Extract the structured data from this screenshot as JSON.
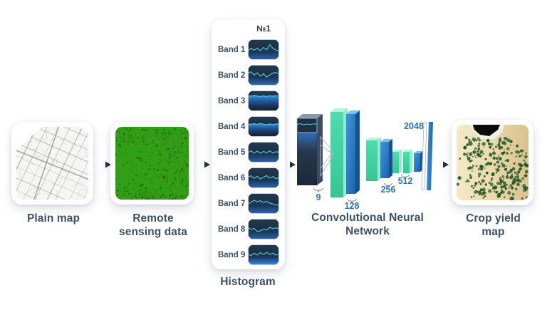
{
  "stages": {
    "plain_map": {
      "caption": "Plain map"
    },
    "remote_sensing": {
      "caption": "Remote sensing data"
    },
    "histogram": {
      "number": "№1",
      "caption": "Histogram",
      "bands": [
        {
          "label": "Band 1",
          "style": "bottom",
          "bright": 0.55,
          "wave": [
            0.3,
            0.52,
            0.38,
            0.5,
            0.34,
            0.58,
            0.4,
            0.78,
            0.52,
            0.38,
            0.33
          ]
        },
        {
          "label": "Band 2",
          "style": "bottom",
          "bright": 0.65,
          "wave": [
            0.55,
            0.68,
            0.44,
            0.6,
            0.36,
            0.52,
            0.28,
            0.44,
            0.58,
            0.62,
            0.48
          ]
        },
        {
          "label": "Band 3",
          "style": "top",
          "bright": 0.3,
          "wave": [
            0.8,
            0.77,
            0.82,
            0.78,
            0.74,
            0.79,
            0.75,
            0.8,
            0.77,
            0.8,
            0.78
          ]
        },
        {
          "label": "Band 4",
          "style": "top",
          "bright": 0.3,
          "wave": [
            0.6,
            0.58,
            0.63,
            0.57,
            0.65,
            0.59,
            0.55,
            0.61,
            0.57,
            0.62,
            0.59
          ]
        },
        {
          "label": "Band 5",
          "style": "bottom",
          "bright": 0.55,
          "wave": [
            0.38,
            0.52,
            0.36,
            0.5,
            0.34,
            0.48,
            0.38,
            0.52,
            0.36,
            0.46,
            0.4
          ]
        },
        {
          "label": "Band 6",
          "style": "bottom",
          "bright": 0.6,
          "wave": [
            0.44,
            0.58,
            0.38,
            0.54,
            0.34,
            0.48,
            0.58,
            0.4,
            0.52,
            0.36,
            0.44
          ]
        },
        {
          "label": "Band 7",
          "style": "bottom",
          "bright": 0.6,
          "wave": [
            0.38,
            0.52,
            0.66,
            0.56,
            0.62,
            0.5,
            0.58,
            0.46,
            0.38,
            0.32,
            0.3
          ]
        },
        {
          "label": "Band 8",
          "style": "bottom",
          "bright": 0.55,
          "wave": [
            0.54,
            0.4,
            0.48,
            0.26,
            0.3,
            0.42,
            0.36,
            0.56,
            0.46,
            0.52,
            0.44
          ]
        },
        {
          "label": "Band 9",
          "style": "bottom",
          "bright": 0.95,
          "wave": [
            0.48,
            0.36,
            0.54,
            0.4,
            0.58,
            0.44,
            0.6,
            0.46,
            0.54,
            0.4,
            0.5
          ]
        }
      ]
    },
    "cnn": {
      "caption": "Convolutional Neural Network",
      "input_wave": [
        0.55,
        0.62,
        0.5,
        0.58,
        0.52,
        0.6,
        0.55
      ],
      "layer_labels": [
        "9",
        "128",
        "256",
        "512",
        "2048"
      ]
    },
    "crop_yield": {
      "caption": "Crop yield map"
    }
  },
  "colors": {
    "caption_text": "#3b5168",
    "number_text": "#2d72b8",
    "green_front_hi": "#4fdcae",
    "green_front_lo": "#38c493",
    "green_side": "#8feccf",
    "green_top": "#b4f4e1",
    "blue_front_hi": "#3e97d9",
    "blue_front_lo": "#1c63ad",
    "blue_side": "#174f91",
    "blue_top": "#7cc3ec",
    "dark_front_hi": "#35475e",
    "dark_front_lo": "#1a2839",
    "dark_side": "#3a4c61",
    "dark_top": "#8a99a9",
    "wave_line": "#48d4c8",
    "wave_glow": "#3f92f2",
    "band_bg_hi": "#24384f",
    "band_bg_lo": "#14253a",
    "map_green": "#2f9f17",
    "sand_hi": "#f4e9c8",
    "sand_lo": "#d9c28c",
    "arrow_head": "#22303f",
    "arrow_tail": "#8b96a2",
    "fan_line": "#adb6c0"
  }
}
